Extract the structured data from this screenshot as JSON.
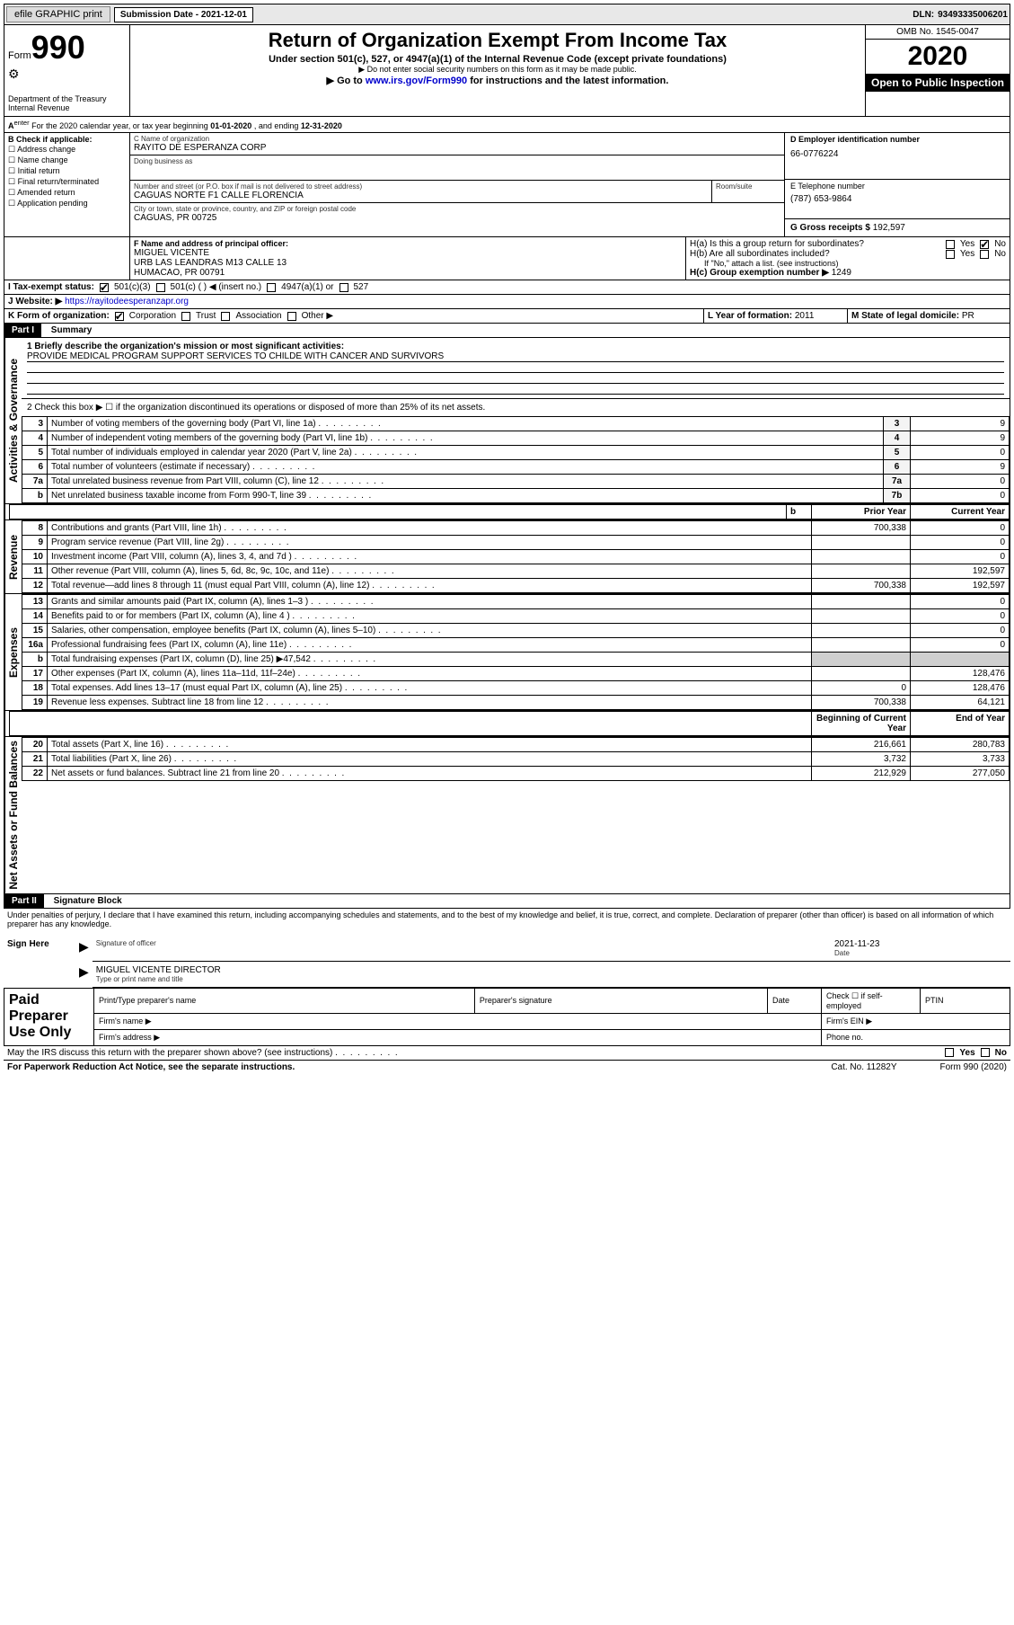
{
  "topbar": {
    "efile_label": "efile GRAPHIC print",
    "submission_label": "Submission Date - ",
    "submission_date": "2021-12-01",
    "dln_label": "DLN: ",
    "dln": "93493335006201"
  },
  "header": {
    "form_word": "Form",
    "form_num": "990",
    "dept": "Department of the Treasury",
    "irs": "Internal Revenue",
    "title": "Return of Organization Exempt From Income Tax",
    "subtitle": "Under section 501(c), 527, or 4947(a)(1) of the Internal Revenue Code (except private foundations)",
    "note1": "▶ Do not enter social security numbers on this form as it may be made public.",
    "note2_pre": "▶ Go to ",
    "note2_link": "www.irs.gov/Form990",
    "note2_post": " for instructions and the latest information.",
    "omb": "OMB No. 1545-0047",
    "year": "2020",
    "open": "Open to Public Inspection"
  },
  "line_a": {
    "text_pre": "For the 2020 calendar year, or tax year beginning ",
    "begin": "01-01-2020",
    "mid": " , and ending ",
    "end": "12-31-2020"
  },
  "sectB": {
    "heading": "B Check if applicable:",
    "opts": [
      "Address change",
      "Name change",
      "Initial return",
      "Final return/terminated",
      "Amended return",
      "Application pending"
    ]
  },
  "nameblock": {
    "c_label": "C Name of organization",
    "c_name": "RAYITO DE ESPERANZA CORP",
    "dba_label": "Doing business as",
    "addr_label": "Number and street (or P.O. box if mail is not delivered to street address)",
    "room_label": "Room/suite",
    "addr": "CAGUAS NORTE F1 CALLE FLORENCIA",
    "city_label": "City or town, state or province, country, and ZIP or foreign postal code",
    "city": "CAGUAS, PR  00725"
  },
  "right1": {
    "d_label": "D Employer identification number",
    "ein": "66-0776224",
    "e_label": "E Telephone number",
    "phone": "(787) 653-9864",
    "g_label": "G Gross receipts $ ",
    "g_val": "192,597"
  },
  "f_block": {
    "label": "F  Name and address of principal officer:",
    "name": "MIGUEL VICENTE",
    "addr1": "URB LAS LEANDRAS M13 CALLE 13",
    "addr2": "HUMACAO, PR  00791"
  },
  "h_block": {
    "ha": "H(a)  Is this a group return for subordinates?",
    "hb": "H(b)  Are all subordinates included?",
    "hb_note": "If \"No,\" attach a list. (see instructions)",
    "hc": "H(c)  Group exemption number ▶",
    "hc_val": "1249",
    "yes": "Yes",
    "no": "No"
  },
  "i_block": {
    "label": "I   Tax-exempt status:",
    "o1": "501(c)(3)",
    "o2": "501(c) (  ) ◀ (insert no.)",
    "o3": "4947(a)(1) or",
    "o4": "527"
  },
  "j_block": {
    "label": "J   Website: ▶",
    "url": "https://rayitodeesperanzapr.org"
  },
  "k_block": {
    "label": "K Form of organization:",
    "corp": "Corporation",
    "trust": "Trust",
    "assoc": "Association",
    "other": "Other ▶"
  },
  "l_block": {
    "label": "L Year of formation: ",
    "val": "2011"
  },
  "m_block": {
    "label": "M State of legal domicile: ",
    "val": "PR"
  },
  "part1": {
    "hdr": "Part I",
    "title": "Summary",
    "side_gov": "Activities & Governance",
    "side_rev": "Revenue",
    "side_exp": "Expenses",
    "side_net": "Net Assets or Fund Balances",
    "l1": "1  Briefly describe the organization's mission or most significant activities:",
    "mission": "PROVIDE MEDICAL PROGRAM SUPPORT SERVICES TO CHILDE WITH CANCER AND SURVIVORS",
    "l2": "2  Check this box ▶ ☐  if the organization discontinued its operations or disposed of more than 25% of its net assets.",
    "prior_hdr": "Prior Year",
    "curr_hdr": "Current Year",
    "begin_hdr": "Beginning of Current Year",
    "end_hdr": "End of Year",
    "rows_gov": [
      {
        "n": "3",
        "t": "Number of voting members of the governing body (Part VI, line 1a)",
        "box": "3",
        "v": "9"
      },
      {
        "n": "4",
        "t": "Number of independent voting members of the governing body (Part VI, line 1b)",
        "box": "4",
        "v": "9"
      },
      {
        "n": "5",
        "t": "Total number of individuals employed in calendar year 2020 (Part V, line 2a)",
        "box": "5",
        "v": "0"
      },
      {
        "n": "6",
        "t": "Total number of volunteers (estimate if necessary)",
        "box": "6",
        "v": "9"
      },
      {
        "n": "7a",
        "t": "Total unrelated business revenue from Part VIII, column (C), line 12",
        "box": "7a",
        "v": "0"
      },
      {
        "n": "b",
        "t": "Net unrelated business taxable income from Form 990-T, line 39",
        "box": "7b",
        "v": "0"
      }
    ],
    "rows_rev": [
      {
        "n": "8",
        "t": "Contributions and grants (Part VIII, line 1h)",
        "p": "700,338",
        "c": "0"
      },
      {
        "n": "9",
        "t": "Program service revenue (Part VIII, line 2g)",
        "p": "",
        "c": "0"
      },
      {
        "n": "10",
        "t": "Investment income (Part VIII, column (A), lines 3, 4, and 7d )",
        "p": "",
        "c": "0"
      },
      {
        "n": "11",
        "t": "Other revenue (Part VIII, column (A), lines 5, 6d, 8c, 9c, 10c, and 11e)",
        "p": "",
        "c": "192,597"
      },
      {
        "n": "12",
        "t": "Total revenue—add lines 8 through 11 (must equal Part VIII, column (A), line 12)",
        "p": "700,338",
        "c": "192,597"
      }
    ],
    "rows_exp": [
      {
        "n": "13",
        "t": "Grants and similar amounts paid (Part IX, column (A), lines 1–3 )",
        "p": "",
        "c": "0"
      },
      {
        "n": "14",
        "t": "Benefits paid to or for members (Part IX, column (A), line 4 )",
        "p": "",
        "c": "0"
      },
      {
        "n": "15",
        "t": "Salaries, other compensation, employee benefits (Part IX, column (A), lines 5–10)",
        "p": "",
        "c": "0"
      },
      {
        "n": "16a",
        "t": "Professional fundraising fees (Part IX, column (A), line 11e)",
        "p": "",
        "c": "0"
      },
      {
        "n": "b",
        "t": "Total fundraising expenses (Part IX, column (D), line 25) ▶47,542",
        "p": "GREY",
        "c": "GREY"
      },
      {
        "n": "17",
        "t": "Other expenses (Part IX, column (A), lines 11a–11d, 11f–24e)",
        "p": "",
        "c": "128,476"
      },
      {
        "n": "18",
        "t": "Total expenses. Add lines 13–17 (must equal Part IX, column (A), line 25)",
        "p": "0",
        "c": "128,476"
      },
      {
        "n": "19",
        "t": "Revenue less expenses. Subtract line 18 from line 12",
        "p": "700,338",
        "c": "64,121"
      }
    ],
    "rows_net": [
      {
        "n": "20",
        "t": "Total assets (Part X, line 16)",
        "p": "216,661",
        "c": "280,783"
      },
      {
        "n": "21",
        "t": "Total liabilities (Part X, line 26)",
        "p": "3,732",
        "c": "3,733"
      },
      {
        "n": "22",
        "t": "Net assets or fund balances. Subtract line 21 from line 20",
        "p": "212,929",
        "c": "277,050"
      }
    ]
  },
  "part2": {
    "hdr": "Part II",
    "title": "Signature Block",
    "decl": "Under penalties of perjury, I declare that I have examined this return, including accompanying schedules and statements, and to the best of my knowledge and belief, it is true, correct, and complete. Declaration of preparer (other than officer) is based on all information of which preparer has any knowledge.",
    "sign_here": "Sign Here",
    "sig_officer": "Signature of officer",
    "date": "Date",
    "sig_date": "2021-11-23",
    "sig_name": "MIGUEL VICENTE  DIRECTOR",
    "type_name": "Type or print name and title",
    "paid": "Paid Preparer Use Only",
    "h1": "Print/Type preparer's name",
    "h2": "Preparer's signature",
    "h3": "Date",
    "h4pre": "Check ☐ if self-employed",
    "h5": "PTIN",
    "firm_name": "Firm's name    ▶",
    "firm_ein": "Firm's EIN ▶",
    "firm_addr": "Firm's address ▶",
    "phone": "Phone no.",
    "may_irs": "May the IRS discuss this return with the preparer shown above? (see instructions)",
    "paperwork": "For Paperwork Reduction Act Notice, see the separate instructions.",
    "catno": "Cat. No. 11282Y",
    "formnum": "Form 990 (2020)"
  }
}
